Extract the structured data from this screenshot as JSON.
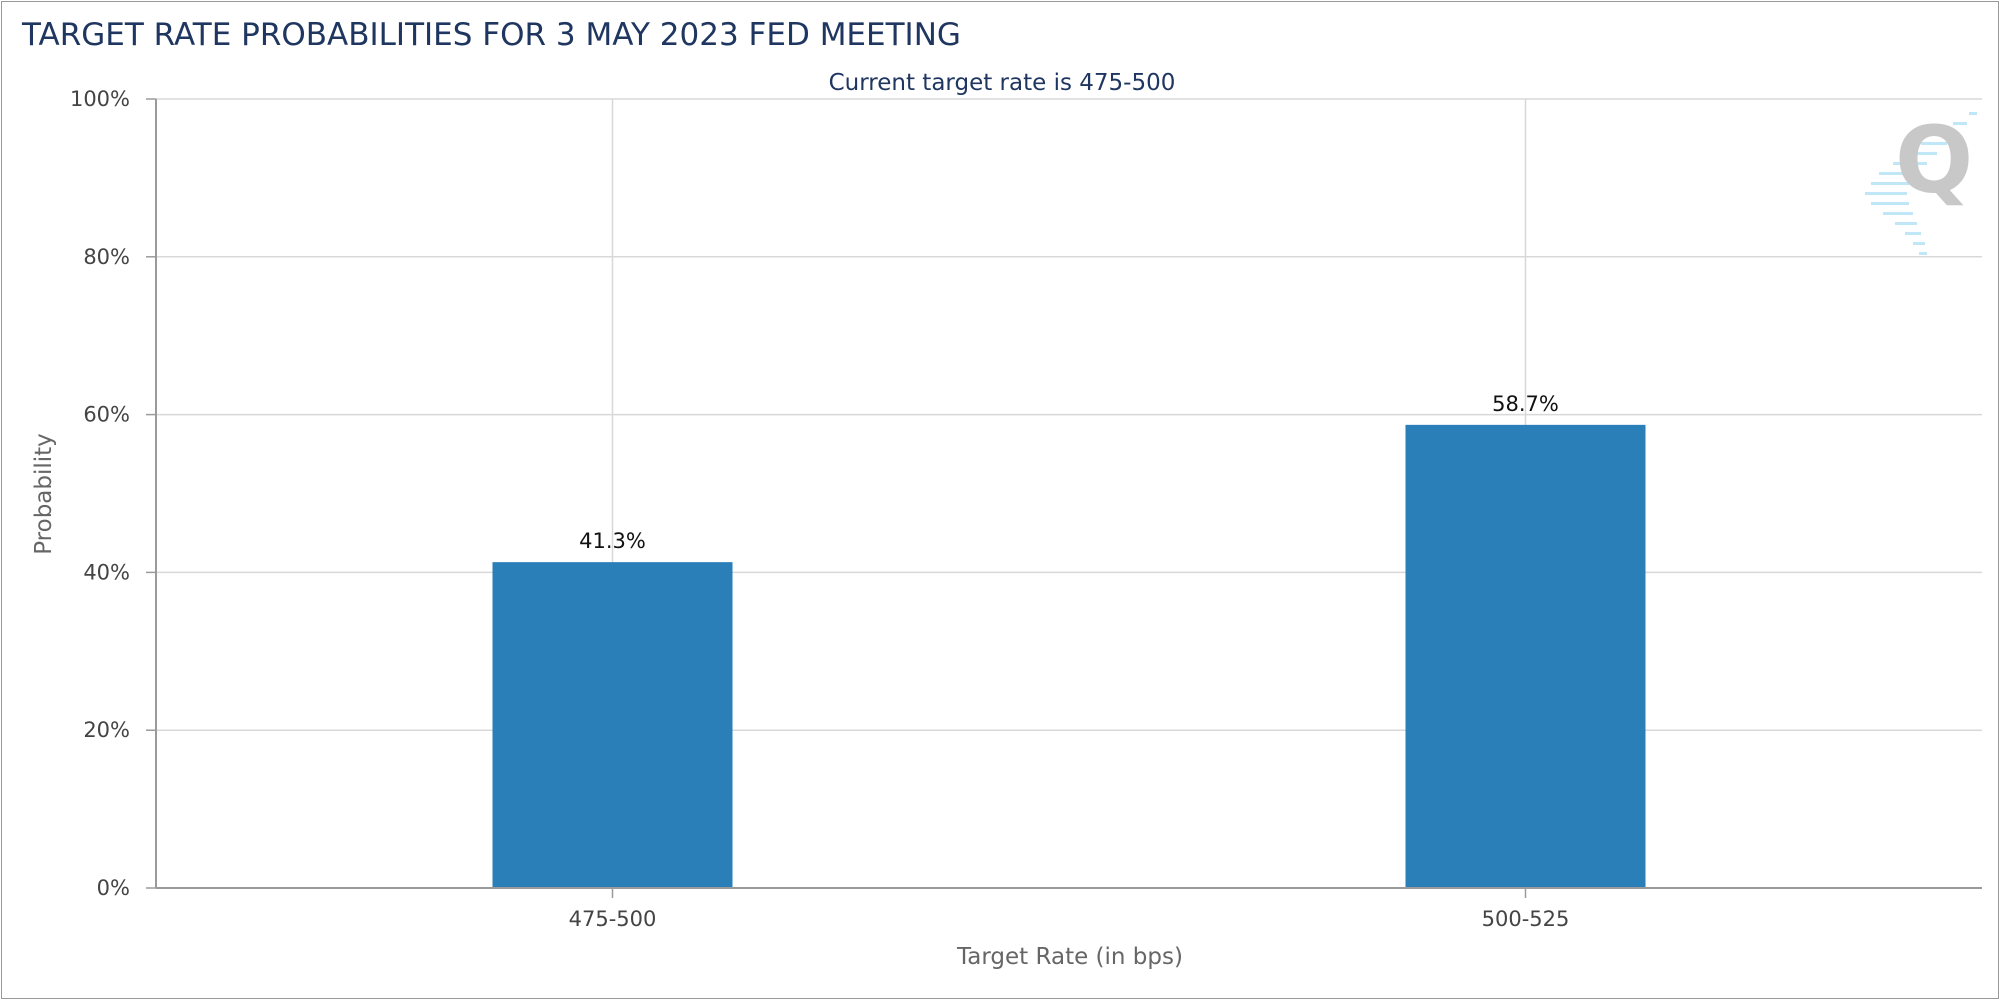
{
  "chart_data": {
    "type": "bar",
    "title": "TARGET RATE PROBABILITIES FOR 3 MAY 2023 FED MEETING",
    "subtitle": "Current target rate is 475-500",
    "xlabel": "Target Rate (in bps)",
    "ylabel": "Probability",
    "categories": [
      "475-500",
      "500-525"
    ],
    "values": [
      41.3,
      58.7
    ],
    "data_labels": [
      "41.3%",
      "58.7%"
    ],
    "ylim": [
      0,
      100
    ],
    "yticks": [
      0,
      20,
      40,
      60,
      80,
      100
    ],
    "ytick_labels": [
      "0%",
      "20%",
      "40%",
      "60%",
      "80%",
      "100%"
    ],
    "grid": true,
    "legend": "none"
  },
  "colors": {
    "bar": "#2a7fb8",
    "gridline": "#d8d8d8",
    "axis": "#9a9a9a",
    "title": "#1f3660"
  },
  "watermark": {
    "icon": "q-logo-icon",
    "text": "Q"
  }
}
